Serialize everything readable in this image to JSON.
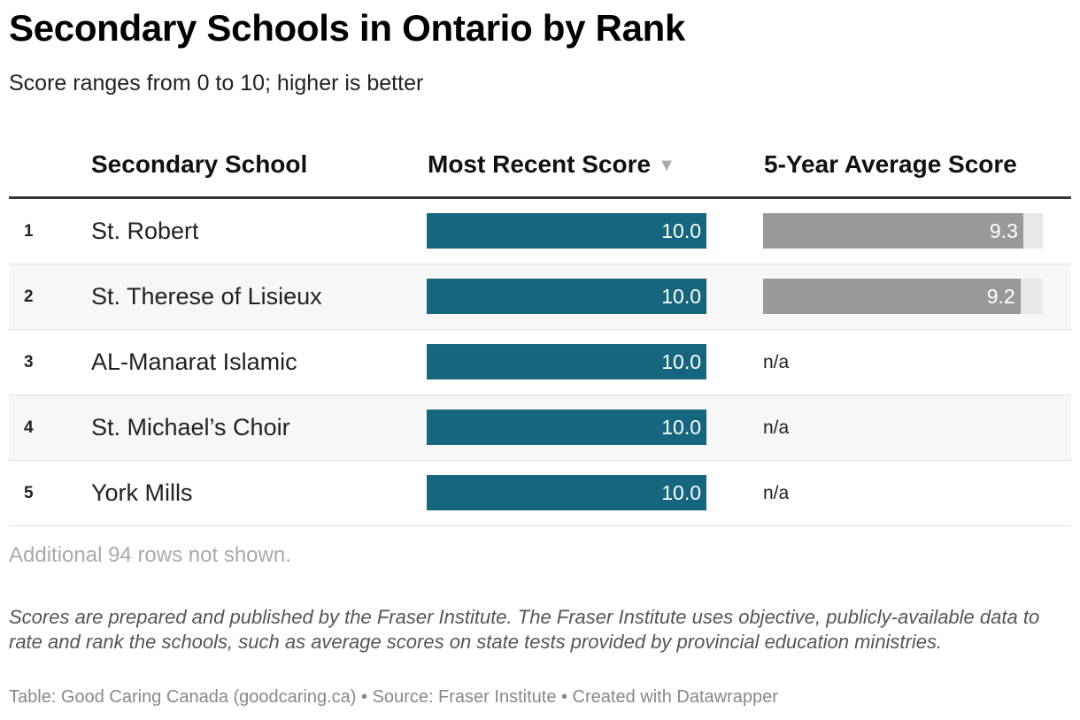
{
  "header": {
    "title": "Secondary Schools in Ontario by Rank",
    "subtitle": "Score ranges from 0 to 10; higher is better"
  },
  "table": {
    "columns": {
      "rank": "",
      "school": "Secondary School",
      "recent": "Most Recent Score",
      "avg": "5-Year Average Score"
    },
    "sort_icon": "▼",
    "rows": [
      {
        "rank": "1",
        "school": "St. Robert",
        "recent": 10.0,
        "recent_label": "10.0",
        "avg": 9.3,
        "avg_label": "9.3"
      },
      {
        "rank": "2",
        "school": "St. Therese of Lisieux",
        "recent": 10.0,
        "recent_label": "10.0",
        "avg": 9.2,
        "avg_label": "9.2"
      },
      {
        "rank": "3",
        "school": "AL-Manarat Islamic",
        "recent": 10.0,
        "recent_label": "10.0",
        "avg": null,
        "avg_label": "n/a"
      },
      {
        "rank": "4",
        "school": "St. Michael’s Choir",
        "recent": 10.0,
        "recent_label": "10.0",
        "avg": null,
        "avg_label": "n/a"
      },
      {
        "rank": "5",
        "school": "York Mills",
        "recent": 10.0,
        "recent_label": "10.0",
        "avg": null,
        "avg_label": "n/a"
      }
    ],
    "more_rows": "Additional 94 rows not shown."
  },
  "notes": "Scores are prepared and published by the Fraser Institute. The Fraser Institute uses objective, publicly-available data to rate and rank the schools, such as average scores on state tests provided by provincial education ministries.",
  "footer": "Table: Good Caring Canada (goodcaring.ca) • Source: Fraser Institute • Created with Datawrapper",
  "colors": {
    "recent_bar": "#176680",
    "avg_bar": "#999999"
  },
  "chart_data": {
    "type": "table",
    "title": "Secondary Schools in Ontario by Rank",
    "subtitle": "Score ranges from 0 to 10; higher is better",
    "categories": [
      "St. Robert",
      "St. Therese of Lisieux",
      "AL-Manarat Islamic",
      "St. Michael’s Choir",
      "York Mills"
    ],
    "series": [
      {
        "name": "Most Recent Score",
        "values": [
          10.0,
          10.0,
          10.0,
          10.0,
          10.0
        ]
      },
      {
        "name": "5-Year Average Score",
        "values": [
          9.3,
          9.2,
          null,
          null,
          null
        ]
      }
    ],
    "xlim": [
      0,
      10
    ]
  }
}
